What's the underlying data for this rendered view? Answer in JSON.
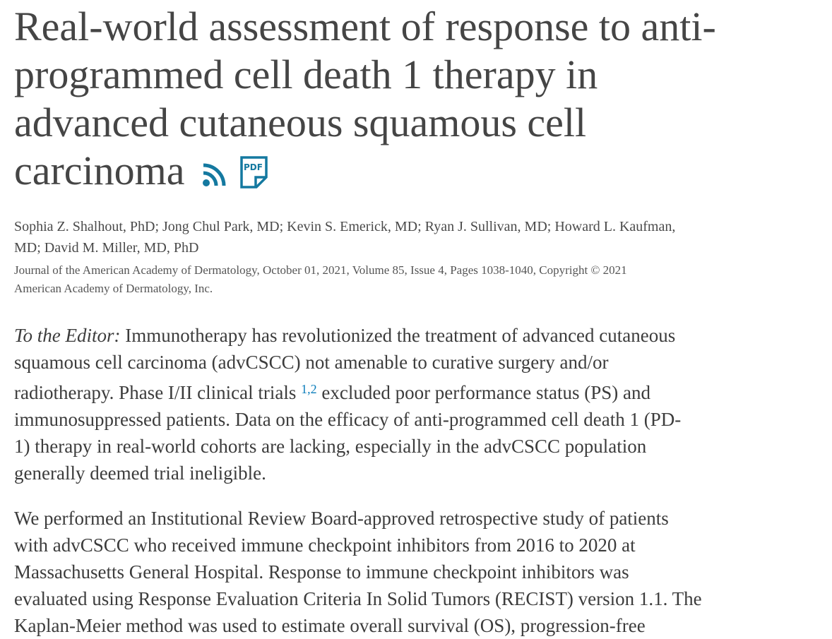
{
  "title_lines": [
    "Real-world assessment of response to anti-",
    "programmed cell death 1 therapy in",
    "advanced cutaneous squamous cell",
    "carcinoma"
  ],
  "icons": {
    "rss": "rss-icon",
    "pdf": "pdf-icon",
    "pdf_label": "PDF",
    "accent": "#0e7490"
  },
  "authors_lines": [
    "Sophia Z. Shalhout, PhD; Jong Chul Park, MD; Kevin S. Emerick, MD; Ryan J. Sullivan, MD; Howard L. Kaufman,",
    "MD; David M. Miller, MD, PhD"
  ],
  "journal_lines": [
    "Journal of the American Academy of Dermatology, October 01, 2021, Volume 85, Issue 4, Pages 1038-1040, Copyright © 2021",
    "American Academy of Dermatology, Inc."
  ],
  "p1": {
    "lead": "To the Editor:",
    "line1": " Immunotherapy has revolutionized the treatment of advanced cutaneous",
    "line2": "squamous cell carcinoma (advCSCC) not amenable to curative surgery and/or",
    "line3_before": "radiotherapy. Phase I/II clinical trials ",
    "ref1": "1",
    "ref_sep": ",",
    "ref2": "2",
    "line3_after": " excluded poor performance status (PS) and",
    "line4": "immunosuppressed patients. Data on the efficacy of anti-programmed cell death 1 (PD-",
    "line5": "1) therapy in real-world cohorts are lacking, especially in the advCSCC population",
    "line6": "generally deemed trial ineligible."
  },
  "p2_lines": [
    "We performed an Institutional Review Board-approved retrospective study of patients",
    "with advCSCC who received immune checkpoint inhibitors from 2016 to 2020 at",
    "Massachusetts General Hospital. Response to immune checkpoint inhibitors was",
    "evaluated using Response Evaluation Criteria In Solid Tumors (RECIST) version 1.1. The",
    "Kaplan-Meier method was used to estimate overall survival (OS), progression-free"
  ]
}
